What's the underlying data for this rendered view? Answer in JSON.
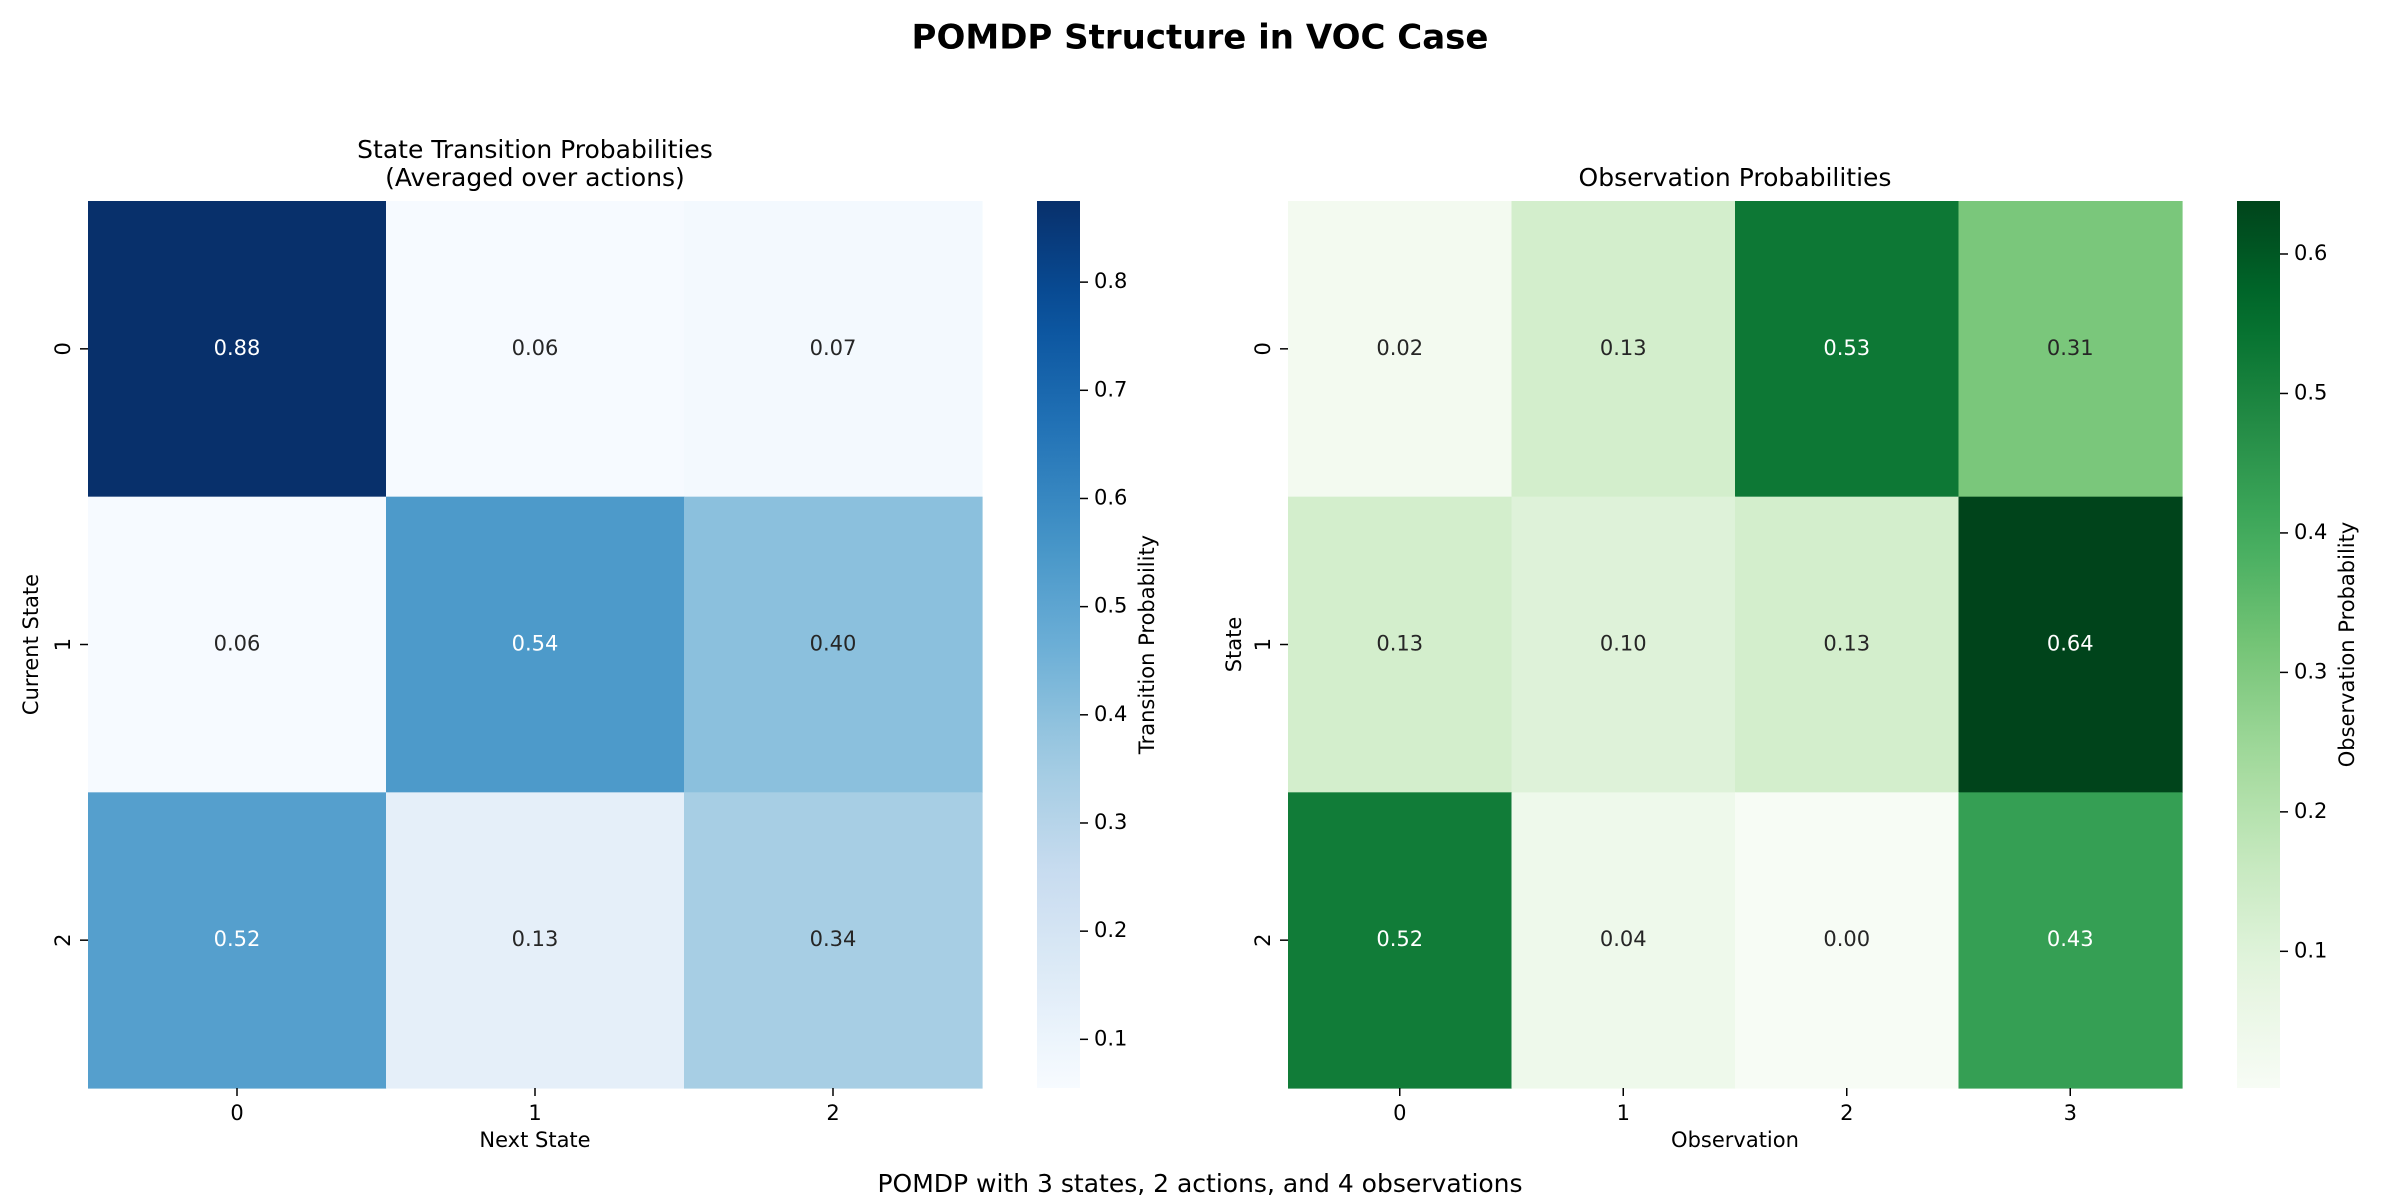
{
  "figure": {
    "title": "POMDP Structure in VOC Case",
    "footer": "POMDP with 3 states, 2 actions, and 4 observations"
  },
  "chart_data": [
    {
      "type": "heatmap",
      "title_lines": [
        "State Transition Probabilities",
        "(Averaged over actions)"
      ],
      "xlabel": "Next State",
      "ylabel": "Current State",
      "x_categories": [
        "0",
        "1",
        "2"
      ],
      "y_categories": [
        "0",
        "1",
        "2"
      ],
      "values": [
        [
          0.88,
          0.06,
          0.07
        ],
        [
          0.06,
          0.54,
          0.4
        ],
        [
          0.52,
          0.13,
          0.34
        ]
      ],
      "value_labels": [
        [
          "0.88",
          "0.06",
          "0.07"
        ],
        [
          "0.06",
          "0.54",
          "0.40"
        ],
        [
          "0.52",
          "0.13",
          "0.34"
        ]
      ],
      "colormap": "Blues",
      "colorbar": {
        "label": "Transition Probability",
        "range": [
          0.055,
          0.875
        ],
        "ticks": [
          0.1,
          0.2,
          0.3,
          0.4,
          0.5,
          0.6,
          0.7,
          0.8
        ],
        "tick_labels": [
          "0.1",
          "0.2",
          "0.3",
          "0.4",
          "0.5",
          "0.6",
          "0.7",
          "0.8"
        ]
      }
    },
    {
      "type": "heatmap",
      "title_lines": [
        "Observation Probabilities"
      ],
      "xlabel": "Observation",
      "ylabel": "State",
      "x_categories": [
        "0",
        "1",
        "2",
        "3"
      ],
      "y_categories": [
        "0",
        "1",
        "2"
      ],
      "values": [
        [
          0.02,
          0.13,
          0.53,
          0.31
        ],
        [
          0.13,
          0.1,
          0.13,
          0.64
        ],
        [
          0.52,
          0.04,
          0.0,
          0.43
        ]
      ],
      "value_labels": [
        [
          "0.02",
          "0.13",
          "0.53",
          "0.31"
        ],
        [
          "0.13",
          "0.10",
          "0.13",
          "0.64"
        ],
        [
          "0.52",
          "0.04",
          "0.00",
          "0.43"
        ]
      ],
      "colormap": "Greens",
      "colorbar": {
        "label": "Observation Probability",
        "range": [
          0.002,
          0.638
        ],
        "ticks": [
          0.1,
          0.2,
          0.3,
          0.4,
          0.5,
          0.6
        ],
        "tick_labels": [
          "0.1",
          "0.2",
          "0.3",
          "0.4",
          "0.5",
          "0.6"
        ]
      }
    }
  ]
}
